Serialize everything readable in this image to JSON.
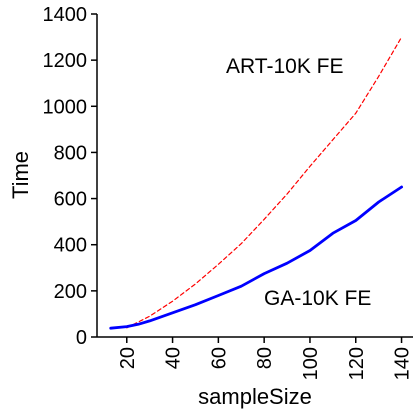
{
  "chart_data": {
    "type": "line",
    "title": "",
    "xlabel": "sampleSize",
    "ylabel": "Time",
    "xlim": [
      7,
      145
    ],
    "ylim": [
      0,
      1400
    ],
    "x_ticks": [
      20,
      40,
      60,
      80,
      100,
      120,
      140
    ],
    "y_ticks": [
      0,
      200,
      400,
      600,
      800,
      1000,
      1200,
      1400
    ],
    "grid": false,
    "legend": "none",
    "series": [
      {
        "name": "ART-10K FE",
        "color": "#ff0000",
        "style": "dashed",
        "x": [
          20,
          30,
          40,
          50,
          60,
          70,
          80,
          90,
          100,
          110,
          120,
          130,
          140
        ],
        "y": [
          40,
          90,
          155,
          230,
          315,
          405,
          510,
          620,
          740,
          855,
          970,
          1130,
          1300
        ]
      },
      {
        "name": "GA-10K FE",
        "color": "#0000ff",
        "style": "solid",
        "x": [
          13,
          20,
          25,
          30,
          40,
          50,
          60,
          70,
          80,
          90,
          100,
          110,
          120,
          130,
          140
        ],
        "y": [
          38,
          45,
          55,
          70,
          105,
          140,
          180,
          220,
          275,
          320,
          375,
          450,
          505,
          585,
          650
        ]
      }
    ],
    "annotations": [
      {
        "text": "ART-10K FE",
        "series": 0
      },
      {
        "text": "GA-10K FE",
        "series": 1
      }
    ]
  }
}
